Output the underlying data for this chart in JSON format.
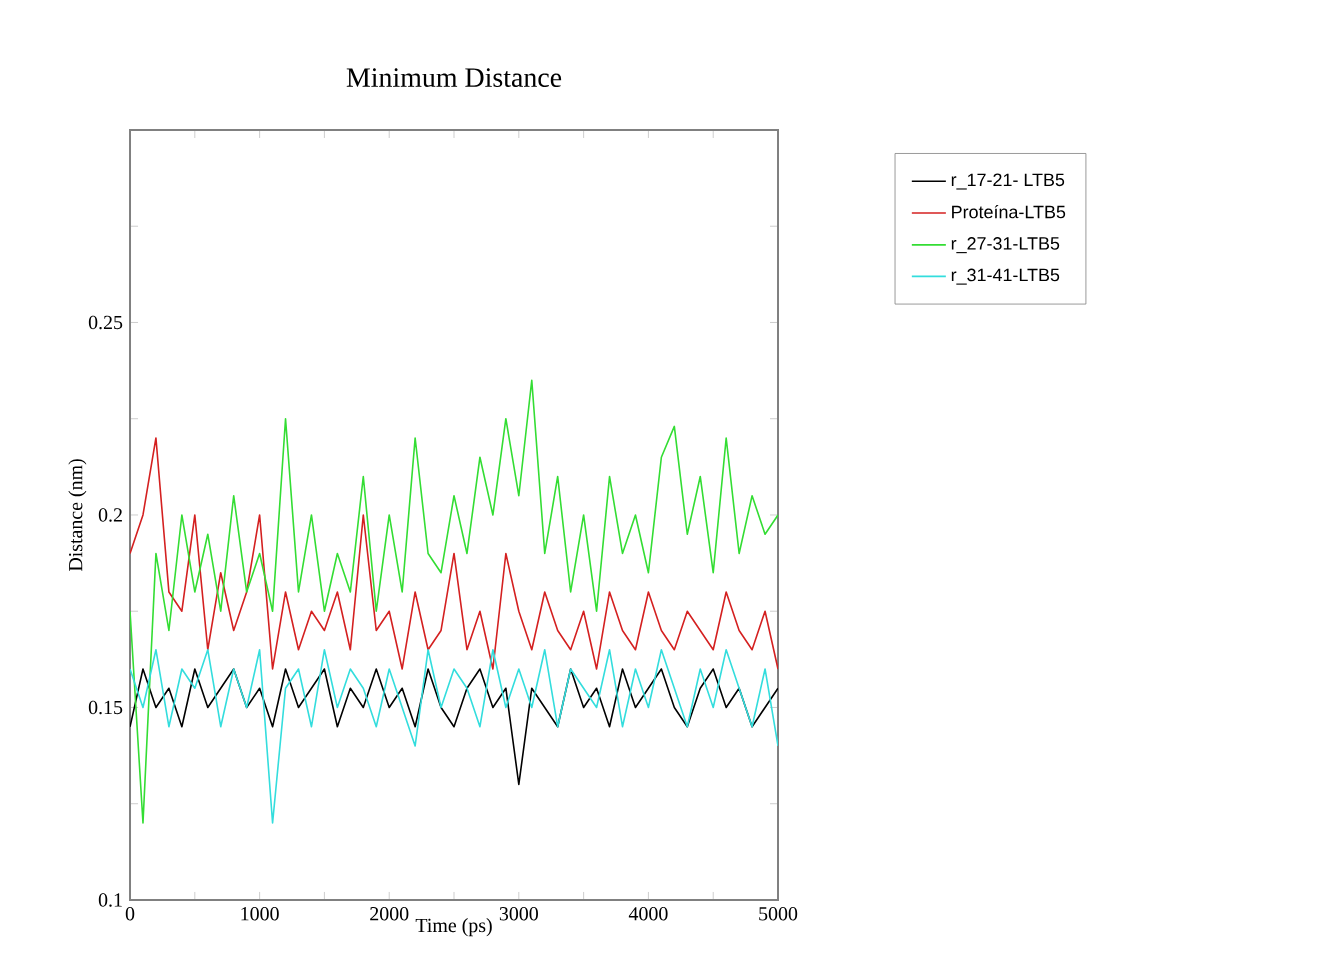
{
  "chart_data": {
    "type": "line",
    "title": "Minimum Distance",
    "xlabel": "Time (ps)",
    "ylabel": "Distance (nm)",
    "x": [
      0,
      100,
      200,
      300,
      400,
      500,
      600,
      700,
      800,
      900,
      1000,
      1100,
      1200,
      1300,
      1400,
      1500,
      1600,
      1700,
      1800,
      1900,
      2000,
      2100,
      2200,
      2300,
      2400,
      2500,
      2600,
      2700,
      2800,
      2900,
      3000,
      3100,
      3200,
      3300,
      3400,
      3500,
      3600,
      3700,
      3800,
      3900,
      4000,
      4100,
      4200,
      4300,
      4400,
      4500,
      4600,
      4700,
      4800,
      4900,
      5000
    ],
    "xlim": [
      0,
      5000
    ],
    "ylim": [
      0.1,
      0.3
    ],
    "xticks": [
      0,
      {
        "value": 500,
        "label": null
      },
      1000,
      {
        "value": 1500,
        "label": null
      },
      2000,
      {
        "value": 2500,
        "label": null
      },
      3000,
      {
        "value": 3500,
        "label": null
      },
      4000,
      {
        "value": 4500,
        "label": null
      },
      5000
    ],
    "yticks": [
      0.1,
      {
        "value": 0.125,
        "label": null
      },
      0.15,
      {
        "value": 0.175,
        "label": null
      },
      0.2,
      {
        "value": 0.225,
        "label": null
      },
      0.25,
      {
        "value": 0.275,
        "label": null
      }
    ],
    "legend": "top right",
    "line_style": "solid",
    "series": [
      {
        "name": "r_17-21- LTB5",
        "color": "#000000",
        "values": [
          0.145,
          0.16,
          0.15,
          0.155,
          0.145,
          0.16,
          0.15,
          0.155,
          0.16,
          0.15,
          0.155,
          0.145,
          0.16,
          0.15,
          0.155,
          0.16,
          0.145,
          0.155,
          0.15,
          0.16,
          0.15,
          0.155,
          0.145,
          0.16,
          0.15,
          0.145,
          0.155,
          0.16,
          0.15,
          0.155,
          0.13,
          0.155,
          0.15,
          0.145,
          0.16,
          0.15,
          0.155,
          0.145,
          0.16,
          0.15,
          0.155,
          0.16,
          0.15,
          0.145,
          0.155,
          0.16,
          0.15,
          0.155,
          0.145,
          0.15,
          0.155
        ]
      },
      {
        "name": "Proteína-LTB5",
        "color": "#d42020",
        "values": [
          0.19,
          0.2,
          0.22,
          0.18,
          0.175,
          0.2,
          0.165,
          0.185,
          0.17,
          0.18,
          0.2,
          0.16,
          0.18,
          0.165,
          0.175,
          0.17,
          0.18,
          0.165,
          0.2,
          0.17,
          0.175,
          0.16,
          0.18,
          0.165,
          0.17,
          0.19,
          0.165,
          0.175,
          0.16,
          0.19,
          0.175,
          0.165,
          0.18,
          0.17,
          0.165,
          0.175,
          0.16,
          0.18,
          0.17,
          0.165,
          0.18,
          0.17,
          0.165,
          0.175,
          0.17,
          0.165,
          0.18,
          0.17,
          0.165,
          0.175,
          0.16
        ]
      },
      {
        "name": "r_27-31-LTB5",
        "color": "#33dd33",
        "values": [
          0.175,
          0.12,
          0.19,
          0.17,
          0.2,
          0.18,
          0.195,
          0.175,
          0.205,
          0.18,
          0.19,
          0.175,
          0.225,
          0.18,
          0.2,
          0.175,
          0.19,
          0.18,
          0.21,
          0.175,
          0.2,
          0.18,
          0.22,
          0.19,
          0.185,
          0.205,
          0.19,
          0.215,
          0.2,
          0.225,
          0.205,
          0.235,
          0.19,
          0.21,
          0.18,
          0.2,
          0.175,
          0.21,
          0.19,
          0.2,
          0.185,
          0.215,
          0.223,
          0.195,
          0.21,
          0.185,
          0.22,
          0.19,
          0.205,
          0.195,
          0.2
        ]
      },
      {
        "name": "r_31-41-LTB5",
        "color": "#33dddd",
        "values": [
          0.16,
          0.15,
          0.165,
          0.145,
          0.16,
          0.155,
          0.165,
          0.145,
          0.16,
          0.15,
          0.165,
          0.12,
          0.155,
          0.16,
          0.145,
          0.165,
          0.15,
          0.16,
          0.155,
          0.145,
          0.16,
          0.15,
          0.14,
          0.165,
          0.15,
          0.16,
          0.155,
          0.145,
          0.165,
          0.15,
          0.16,
          0.15,
          0.165,
          0.145,
          0.16,
          0.155,
          0.15,
          0.165,
          0.145,
          0.16,
          0.15,
          0.165,
          0.155,
          0.145,
          0.16,
          0.15,
          0.165,
          0.155,
          0.145,
          0.16,
          0.14
        ]
      }
    ]
  }
}
